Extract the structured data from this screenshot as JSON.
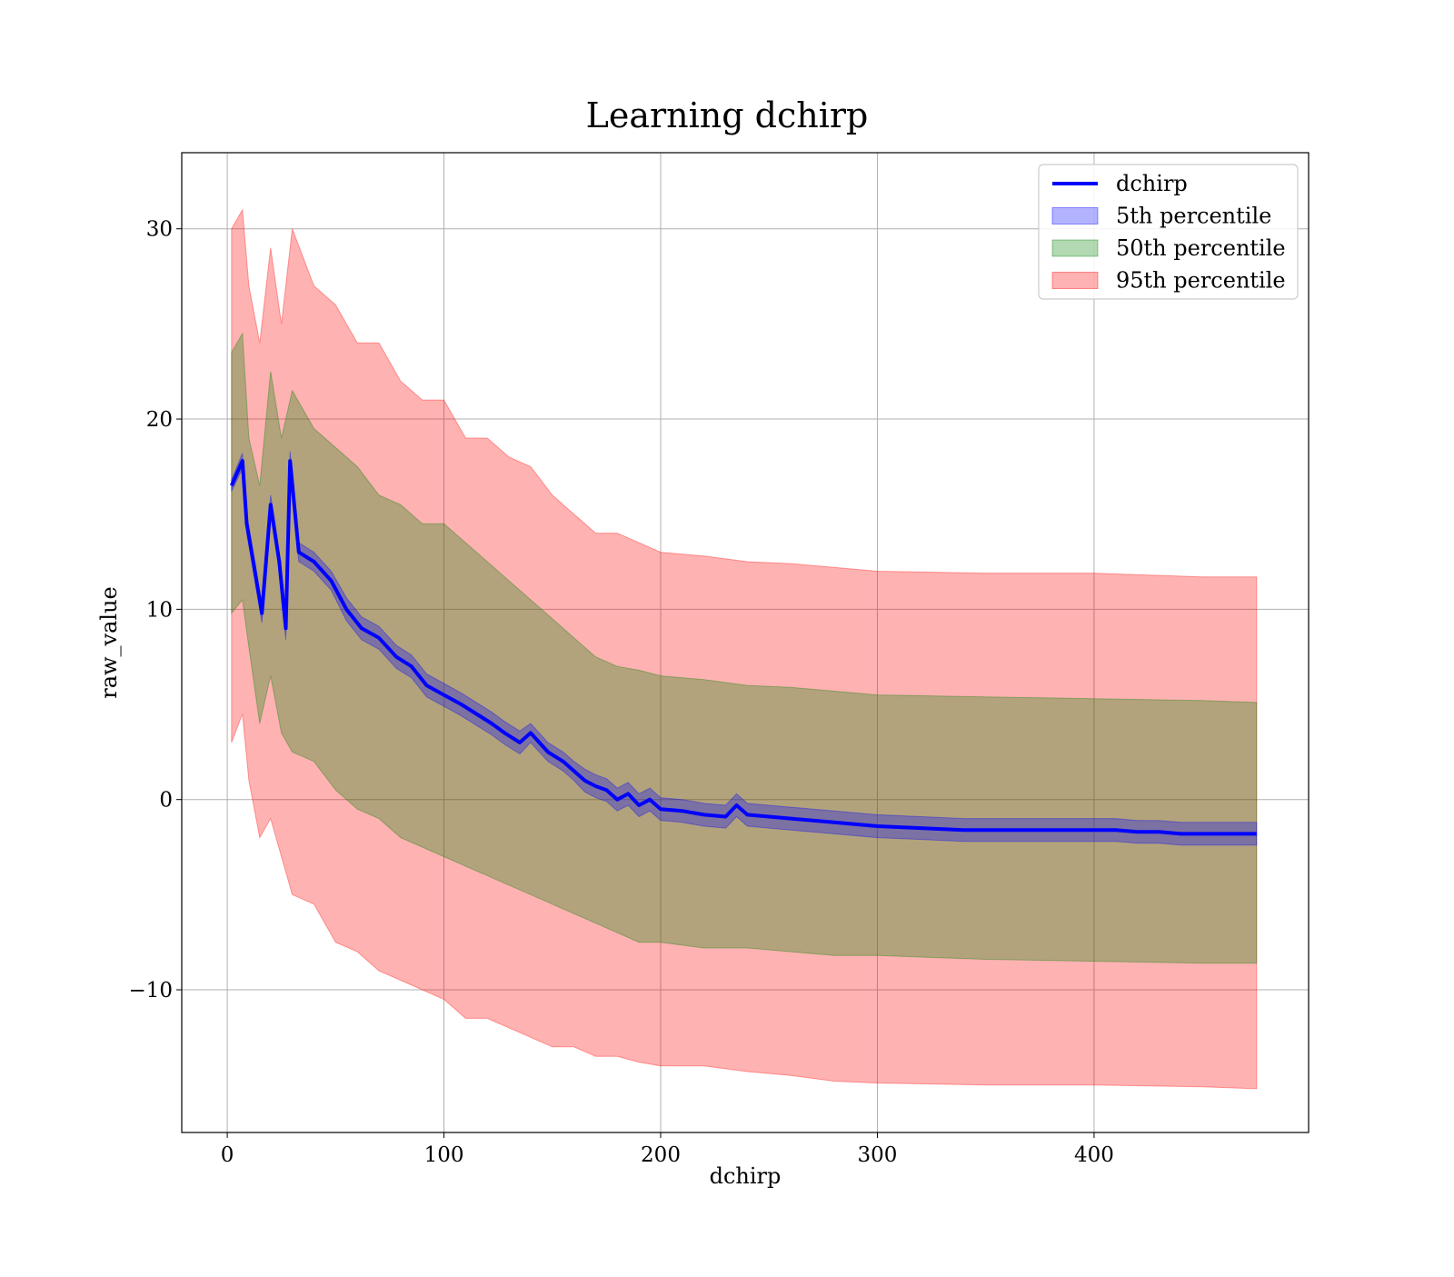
{
  "chart_data": {
    "type": "line",
    "title": "Learning dchirp",
    "xlabel": "dchirp",
    "ylabel": "raw_value",
    "xlim": [
      -21,
      499
    ],
    "ylim": [
      -17.5,
      34
    ],
    "xticks": [
      0,
      100,
      200,
      300,
      400
    ],
    "yticks": [
      -10,
      0,
      10,
      20,
      30
    ],
    "grid": true,
    "legend_position": "top-right",
    "legend": [
      {
        "label": "dchirp",
        "kind": "line",
        "color": "#0000ff"
      },
      {
        "label": "5th percentile",
        "kind": "patch",
        "color": "#0000ff"
      },
      {
        "label": "50th percentile",
        "kind": "patch",
        "color": "#008000"
      },
      {
        "label": "95th percentile",
        "kind": "patch",
        "color": "#ff0000"
      }
    ],
    "band_opacity": 0.3,
    "line": {
      "name": "dchirp",
      "color": "#0000ff",
      "x": [
        2,
        7,
        9,
        12,
        16,
        20,
        24,
        27,
        29,
        33,
        40,
        48,
        55,
        62,
        70,
        78,
        85,
        92,
        100,
        108,
        115,
        122,
        128,
        135,
        140,
        148,
        155,
        160,
        165,
        170,
        175,
        180,
        185,
        190,
        195,
        200,
        210,
        220,
        230,
        235,
        240,
        250,
        260,
        280,
        300,
        320,
        340,
        360,
        380,
        400,
        410,
        420,
        430,
        440,
        460,
        475
      ],
      "y": [
        16.5,
        17.8,
        14.5,
        12.5,
        9.8,
        15.5,
        12.5,
        9.0,
        17.8,
        13.0,
        12.5,
        11.5,
        10.0,
        9.0,
        8.5,
        7.5,
        7.0,
        6.0,
        5.5,
        5.0,
        4.5,
        4.0,
        3.5,
        3.0,
        3.5,
        2.5,
        2.0,
        1.5,
        1.0,
        0.7,
        0.5,
        0.0,
        0.3,
        -0.3,
        0.0,
        -0.5,
        -0.6,
        -0.8,
        -0.9,
        -0.3,
        -0.8,
        -0.9,
        -1.0,
        -1.2,
        -1.4,
        -1.5,
        -1.6,
        -1.6,
        -1.6,
        -1.6,
        -1.6,
        -1.7,
        -1.7,
        -1.8,
        -1.8,
        -1.8
      ]
    },
    "bands": [
      {
        "name": "95th percentile",
        "color": "#ff0000",
        "x": [
          2,
          7,
          10,
          15,
          20,
          25,
          30,
          40,
          50,
          60,
          70,
          80,
          90,
          100,
          110,
          120,
          130,
          140,
          150,
          160,
          170,
          180,
          190,
          200,
          220,
          240,
          260,
          280,
          300,
          350,
          400,
          450,
          475
        ],
        "upper": [
          30.0,
          31.0,
          27.0,
          24.0,
          29.0,
          25.0,
          30.0,
          27.0,
          26.0,
          24.0,
          24.0,
          22.0,
          21.0,
          21.0,
          19.0,
          19.0,
          18.0,
          17.5,
          16.0,
          15.0,
          14.0,
          14.0,
          13.5,
          13.0,
          12.8,
          12.5,
          12.4,
          12.2,
          12.0,
          11.9,
          11.9,
          11.7,
          11.7
        ],
        "lower": [
          3.0,
          4.5,
          1.0,
          -2.0,
          -1.0,
          -3.0,
          -5.0,
          -5.5,
          -7.5,
          -8.0,
          -9.0,
          -9.5,
          -10.0,
          -10.5,
          -11.5,
          -11.5,
          -12.0,
          -12.5,
          -13.0,
          -13.0,
          -13.5,
          -13.5,
          -13.8,
          -14.0,
          -14.0,
          -14.3,
          -14.5,
          -14.8,
          -14.9,
          -15.0,
          -15.0,
          -15.1,
          -15.2
        ]
      },
      {
        "name": "50th percentile",
        "color": "#008000",
        "x": [
          2,
          7,
          10,
          15,
          20,
          25,
          30,
          40,
          50,
          60,
          70,
          80,
          90,
          100,
          110,
          120,
          130,
          140,
          150,
          160,
          170,
          180,
          190,
          200,
          220,
          240,
          260,
          280,
          300,
          350,
          400,
          450,
          475
        ],
        "upper": [
          23.5,
          24.5,
          19.0,
          16.5,
          22.5,
          19.0,
          21.5,
          19.5,
          18.5,
          17.5,
          16.0,
          15.5,
          14.5,
          14.5,
          13.5,
          12.5,
          11.5,
          10.5,
          9.5,
          8.5,
          7.5,
          7.0,
          6.8,
          6.5,
          6.3,
          6.0,
          5.9,
          5.7,
          5.5,
          5.4,
          5.3,
          5.2,
          5.1
        ],
        "lower": [
          9.8,
          10.5,
          8.0,
          4.0,
          6.5,
          3.5,
          2.5,
          2.0,
          0.5,
          -0.5,
          -1.0,
          -2.0,
          -2.5,
          -3.0,
          -3.5,
          -4.0,
          -4.5,
          -5.0,
          -5.5,
          -6.0,
          -6.5,
          -7.0,
          -7.5,
          -7.5,
          -7.8,
          -7.8,
          -8.0,
          -8.2,
          -8.2,
          -8.4,
          -8.5,
          -8.6,
          -8.6
        ]
      },
      {
        "name": "5th percentile",
        "color": "#0000ff",
        "x": [
          2,
          7,
          9,
          12,
          16,
          20,
          24,
          27,
          29,
          33,
          40,
          48,
          55,
          62,
          70,
          78,
          85,
          92,
          100,
          108,
          115,
          122,
          128,
          135,
          140,
          148,
          155,
          160,
          165,
          170,
          175,
          180,
          185,
          190,
          195,
          200,
          210,
          220,
          230,
          235,
          240,
          250,
          260,
          280,
          300,
          320,
          340,
          360,
          380,
          400,
          410,
          420,
          430,
          440,
          460,
          475
        ],
        "upper": [
          16.8,
          18.2,
          15.0,
          13.0,
          10.3,
          16.0,
          13.0,
          9.6,
          18.3,
          13.5,
          13.0,
          12.0,
          10.6,
          9.6,
          9.1,
          8.1,
          7.6,
          6.6,
          6.1,
          5.6,
          5.1,
          4.6,
          4.1,
          3.6,
          4.0,
          3.0,
          2.5,
          2.0,
          1.6,
          1.3,
          1.1,
          0.6,
          0.9,
          0.3,
          0.6,
          0.1,
          0.0,
          -0.2,
          -0.3,
          0.3,
          -0.2,
          -0.3,
          -0.4,
          -0.6,
          -0.8,
          -0.9,
          -1.0,
          -1.0,
          -1.0,
          -1.0,
          -1.0,
          -1.1,
          -1.1,
          -1.2,
          -1.2,
          -1.2
        ],
        "lower": [
          16.2,
          17.4,
          14.0,
          12.0,
          9.3,
          15.0,
          12.0,
          8.4,
          17.3,
          12.5,
          12.0,
          11.0,
          9.4,
          8.4,
          7.9,
          6.9,
          6.4,
          5.4,
          4.9,
          4.4,
          3.9,
          3.4,
          2.9,
          2.4,
          3.0,
          2.0,
          1.5,
          1.0,
          0.4,
          0.1,
          -0.1,
          -0.6,
          -0.3,
          -0.9,
          -0.6,
          -1.1,
          -1.2,
          -1.4,
          -1.5,
          -0.9,
          -1.4,
          -1.5,
          -1.6,
          -1.8,
          -2.0,
          -2.1,
          -2.2,
          -2.2,
          -2.2,
          -2.2,
          -2.2,
          -2.3,
          -2.3,
          -2.4,
          -2.4,
          -2.4
        ]
      }
    ]
  }
}
